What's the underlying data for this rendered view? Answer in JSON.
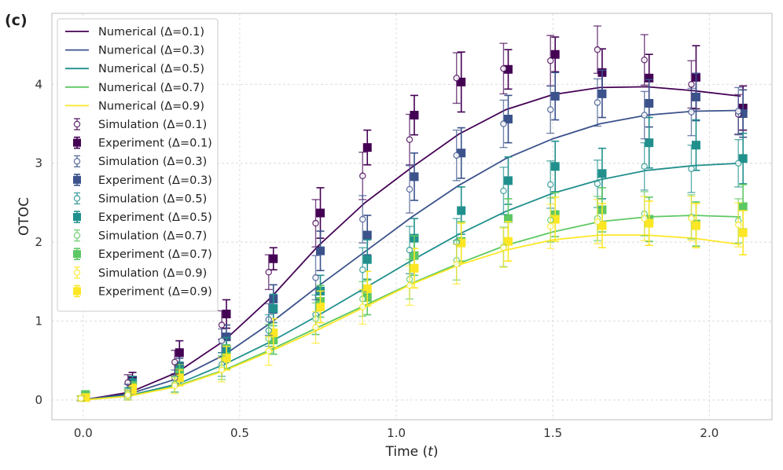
{
  "panel_label": "(c)",
  "colors": {
    "d01": "#440154",
    "d03": "#3b528b",
    "d05": "#21908d",
    "d07": "#5dc863",
    "d09": "#fde725"
  },
  "chart_data": {
    "type": "line",
    "xlabel_text": "Time (",
    "xlabel_var": "t",
    "xlabel_close": ")",
    "ylabel": "OTOC",
    "xlim": [
      -0.1,
      2.2
    ],
    "ylim": [
      -0.25,
      4.9
    ],
    "xticks": [
      0.0,
      0.5,
      1.0,
      1.5,
      2.0
    ],
    "xtick_labels": [
      "0.0",
      "0.5",
      "1.0",
      "1.5",
      "2.0"
    ],
    "yticks": [
      0,
      1,
      2,
      3,
      4
    ],
    "ytick_labels": [
      "0",
      "1",
      "2",
      "3",
      "4"
    ],
    "grid": true,
    "legend_position": "upper-left",
    "numerical": [
      {
        "name": "Numerical (Δ=0.1)",
        "color": "#440154",
        "x": [
          0,
          0.15,
          0.3,
          0.45,
          0.6,
          0.75,
          0.9,
          1.05,
          1.2,
          1.35,
          1.5,
          1.65,
          1.8,
          1.95,
          2.1
        ],
        "y": [
          0.0,
          0.1,
          0.35,
          0.75,
          1.3,
          1.95,
          2.5,
          2.95,
          3.37,
          3.68,
          3.87,
          3.96,
          3.97,
          3.92,
          3.85
        ]
      },
      {
        "name": "Numerical (Δ=0.3)",
        "color": "#3b528b",
        "x": [
          0,
          0.15,
          0.3,
          0.45,
          0.6,
          0.75,
          0.9,
          1.05,
          1.2,
          1.35,
          1.5,
          1.65,
          1.8,
          1.95,
          2.1
        ],
        "y": [
          0.0,
          0.08,
          0.27,
          0.57,
          0.98,
          1.44,
          1.88,
          2.32,
          2.72,
          3.06,
          3.31,
          3.5,
          3.61,
          3.66,
          3.67
        ]
      },
      {
        "name": "Numerical (Δ=0.5)",
        "color": "#21908d",
        "x": [
          0,
          0.15,
          0.3,
          0.45,
          0.6,
          0.75,
          0.9,
          1.05,
          1.2,
          1.35,
          1.5,
          1.65,
          1.8,
          1.95,
          2.1
        ],
        "y": [
          0.0,
          0.06,
          0.2,
          0.45,
          0.74,
          1.07,
          1.42,
          1.77,
          2.1,
          2.39,
          2.62,
          2.79,
          2.91,
          2.97,
          3.0
        ]
      },
      {
        "name": "Numerical (Δ=0.7)",
        "color": "#5dc863",
        "x": [
          0,
          0.15,
          0.3,
          0.45,
          0.6,
          0.75,
          0.9,
          1.05,
          1.2,
          1.35,
          1.5,
          1.65,
          1.8,
          1.95,
          2.1
        ],
        "y": [
          0.0,
          0.05,
          0.18,
          0.38,
          0.64,
          0.92,
          1.2,
          1.48,
          1.73,
          1.96,
          2.13,
          2.26,
          2.32,
          2.34,
          2.32
        ]
      },
      {
        "name": "Numerical (Δ=0.9)",
        "color": "#fde725",
        "x": [
          0,
          0.15,
          0.3,
          0.45,
          0.6,
          0.75,
          0.9,
          1.05,
          1.2,
          1.35,
          1.5,
          1.65,
          1.8,
          1.95,
          2.1
        ],
        "y": [
          0.0,
          0.05,
          0.17,
          0.37,
          0.62,
          0.89,
          1.18,
          1.47,
          1.71,
          1.9,
          2.03,
          2.09,
          2.09,
          2.05,
          1.97
        ]
      }
    ],
    "simulation": [
      {
        "name": "Simulation (Δ=0.1)",
        "color": "#440154",
        "x": [
          0,
          0.15,
          0.3,
          0.45,
          0.6,
          0.75,
          0.9,
          1.05,
          1.2,
          1.35,
          1.5,
          1.65,
          1.8,
          1.95,
          2.1
        ],
        "y": [
          0.02,
          0.22,
          0.48,
          0.95,
          1.62,
          2.24,
          2.84,
          3.3,
          4.08,
          4.2,
          4.3,
          4.44,
          4.31,
          4.0,
          3.62
        ],
        "err": [
          0.03,
          0.1,
          0.15,
          0.18,
          0.22,
          0.3,
          0.3,
          0.32,
          0.32,
          0.32,
          0.32,
          0.3,
          0.32,
          0.3,
          0.25
        ]
      },
      {
        "name": "Simulation (Δ=0.3)",
        "color": "#3b528b",
        "x": [
          0,
          0.15,
          0.3,
          0.45,
          0.6,
          0.75,
          0.9,
          1.05,
          1.2,
          1.35,
          1.5,
          1.65,
          1.8,
          1.95,
          2.1
        ],
        "y": [
          0.02,
          0.12,
          0.28,
          0.75,
          1.02,
          1.55,
          2.29,
          2.67,
          3.1,
          3.5,
          3.68,
          3.77,
          3.61,
          3.65,
          3.66
        ],
        "err": [
          0.03,
          0.08,
          0.1,
          0.15,
          0.2,
          0.28,
          0.3,
          0.3,
          0.32,
          0.3,
          0.3,
          0.3,
          0.3,
          0.3,
          0.3
        ]
      },
      {
        "name": "Simulation (Δ=0.5)",
        "color": "#21908d",
        "x": [
          0,
          0.15,
          0.3,
          0.45,
          0.6,
          0.75,
          0.9,
          1.05,
          1.2,
          1.35,
          1.5,
          1.65,
          1.8,
          1.95,
          2.1
        ],
        "y": [
          0.02,
          0.08,
          0.2,
          0.45,
          0.88,
          1.08,
          1.65,
          1.9,
          2.0,
          2.65,
          2.73,
          2.74,
          2.96,
          2.93,
          3.0
        ],
        "err": [
          0.03,
          0.08,
          0.1,
          0.15,
          0.2,
          0.25,
          0.28,
          0.3,
          0.3,
          0.3,
          0.3,
          0.3,
          0.3,
          0.3,
          0.3
        ]
      },
      {
        "name": "Simulation (Δ=0.7)",
        "color": "#5dc863",
        "x": [
          0,
          0.15,
          0.3,
          0.45,
          0.6,
          0.75,
          0.9,
          1.05,
          1.2,
          1.35,
          1.5,
          1.65,
          1.8,
          1.95,
          2.1
        ],
        "y": [
          0.02,
          0.08,
          0.2,
          0.41,
          0.78,
          1.03,
          1.28,
          1.53,
          1.77,
          1.94,
          2.28,
          2.3,
          2.36,
          2.32,
          2.27
        ],
        "err": [
          0.03,
          0.06,
          0.1,
          0.15,
          0.18,
          0.2,
          0.22,
          0.25,
          0.25,
          0.25,
          0.28,
          0.28,
          0.28,
          0.28,
          0.28
        ]
      },
      {
        "name": "Simulation (Δ=0.9)",
        "color": "#fde725",
        "x": [
          0,
          0.15,
          0.3,
          0.45,
          0.6,
          0.75,
          0.9,
          1.05,
          1.2,
          1.35,
          1.5,
          1.65,
          1.8,
          1.95,
          2.1
        ],
        "y": [
          0.02,
          0.06,
          0.18,
          0.38,
          0.62,
          0.92,
          1.18,
          1.45,
          1.72,
          1.93,
          2.2,
          2.26,
          2.3,
          2.3,
          2.22
        ],
        "err": [
          0.03,
          0.06,
          0.1,
          0.15,
          0.18,
          0.2,
          0.22,
          0.25,
          0.25,
          0.25,
          0.28,
          0.28,
          0.28,
          0.28,
          0.28
        ]
      }
    ],
    "experiment": [
      {
        "name": "Experiment (Δ=0.1)",
        "color": "#440154",
        "x": [
          0,
          0.15,
          0.3,
          0.45,
          0.6,
          0.75,
          0.9,
          1.05,
          1.2,
          1.35,
          1.5,
          1.65,
          1.8,
          1.95,
          2.1
        ],
        "y": [
          0.04,
          0.25,
          0.6,
          1.09,
          1.79,
          2.37,
          3.2,
          3.61,
          4.03,
          4.19,
          4.38,
          4.15,
          4.08,
          4.09,
          3.7
        ],
        "err": [
          0.03,
          0.1,
          0.15,
          0.18,
          0.14,
          0.32,
          0.22,
          0.25,
          0.38,
          0.25,
          0.22,
          0.3,
          0.3,
          0.4,
          0.28
        ]
      },
      {
        "name": "Experiment (Δ=0.3)",
        "color": "#3b528b",
        "x": [
          0,
          0.15,
          0.3,
          0.45,
          0.6,
          0.75,
          0.9,
          1.05,
          1.2,
          1.35,
          1.5,
          1.65,
          1.8,
          1.95,
          2.1
        ],
        "y": [
          0.04,
          0.16,
          0.43,
          0.8,
          1.28,
          1.89,
          2.09,
          2.83,
          3.13,
          3.56,
          3.85,
          3.88,
          3.76,
          3.84,
          3.63
        ],
        "err": [
          0.03,
          0.08,
          0.1,
          0.15,
          0.18,
          0.25,
          0.25,
          0.3,
          0.32,
          0.3,
          0.3,
          0.3,
          0.3,
          0.3,
          0.3
        ]
      },
      {
        "name": "Experiment (Δ=0.5)",
        "color": "#21908d",
        "x": [
          0,
          0.15,
          0.3,
          0.45,
          0.6,
          0.75,
          0.9,
          1.05,
          1.2,
          1.35,
          1.5,
          1.65,
          1.8,
          1.95,
          2.1
        ],
        "y": [
          0.06,
          0.22,
          0.38,
          0.64,
          1.16,
          1.38,
          1.78,
          2.05,
          2.4,
          2.78,
          2.96,
          2.87,
          3.26,
          3.23,
          3.06
        ],
        "err": [
          0.03,
          0.08,
          0.1,
          0.15,
          0.18,
          0.2,
          0.25,
          0.25,
          0.3,
          0.3,
          0.32,
          0.32,
          0.32,
          0.32,
          0.32
        ]
      },
      {
        "name": "Experiment (Δ=0.7)",
        "color": "#5dc863",
        "x": [
          0,
          0.15,
          0.3,
          0.45,
          0.6,
          0.75,
          0.9,
          1.05,
          1.2,
          1.35,
          1.5,
          1.65,
          1.8,
          1.95,
          2.1
        ],
        "y": [
          0.07,
          0.17,
          0.35,
          0.55,
          0.76,
          1.25,
          1.3,
          1.83,
          2.01,
          2.3,
          2.35,
          2.41,
          2.29,
          2.23,
          2.45
        ],
        "err": [
          0.03,
          0.06,
          0.1,
          0.15,
          0.18,
          0.2,
          0.22,
          0.25,
          0.25,
          0.25,
          0.28,
          0.28,
          0.28,
          0.28,
          0.28
        ]
      },
      {
        "name": "Experiment (Δ=0.9)",
        "color": "#fde725",
        "x": [
          0,
          0.15,
          0.3,
          0.45,
          0.6,
          0.75,
          0.9,
          1.05,
          1.2,
          1.35,
          1.5,
          1.65,
          1.8,
          1.95,
          2.1
        ],
        "y": [
          0.03,
          0.14,
          0.28,
          0.53,
          0.85,
          1.18,
          1.41,
          1.67,
          1.99,
          2.01,
          2.29,
          2.21,
          2.24,
          2.21,
          2.12
        ],
        "err": [
          0.03,
          0.06,
          0.1,
          0.15,
          0.18,
          0.2,
          0.22,
          0.25,
          0.25,
          0.25,
          0.28,
          0.28,
          0.28,
          0.28,
          0.28
        ]
      }
    ]
  }
}
